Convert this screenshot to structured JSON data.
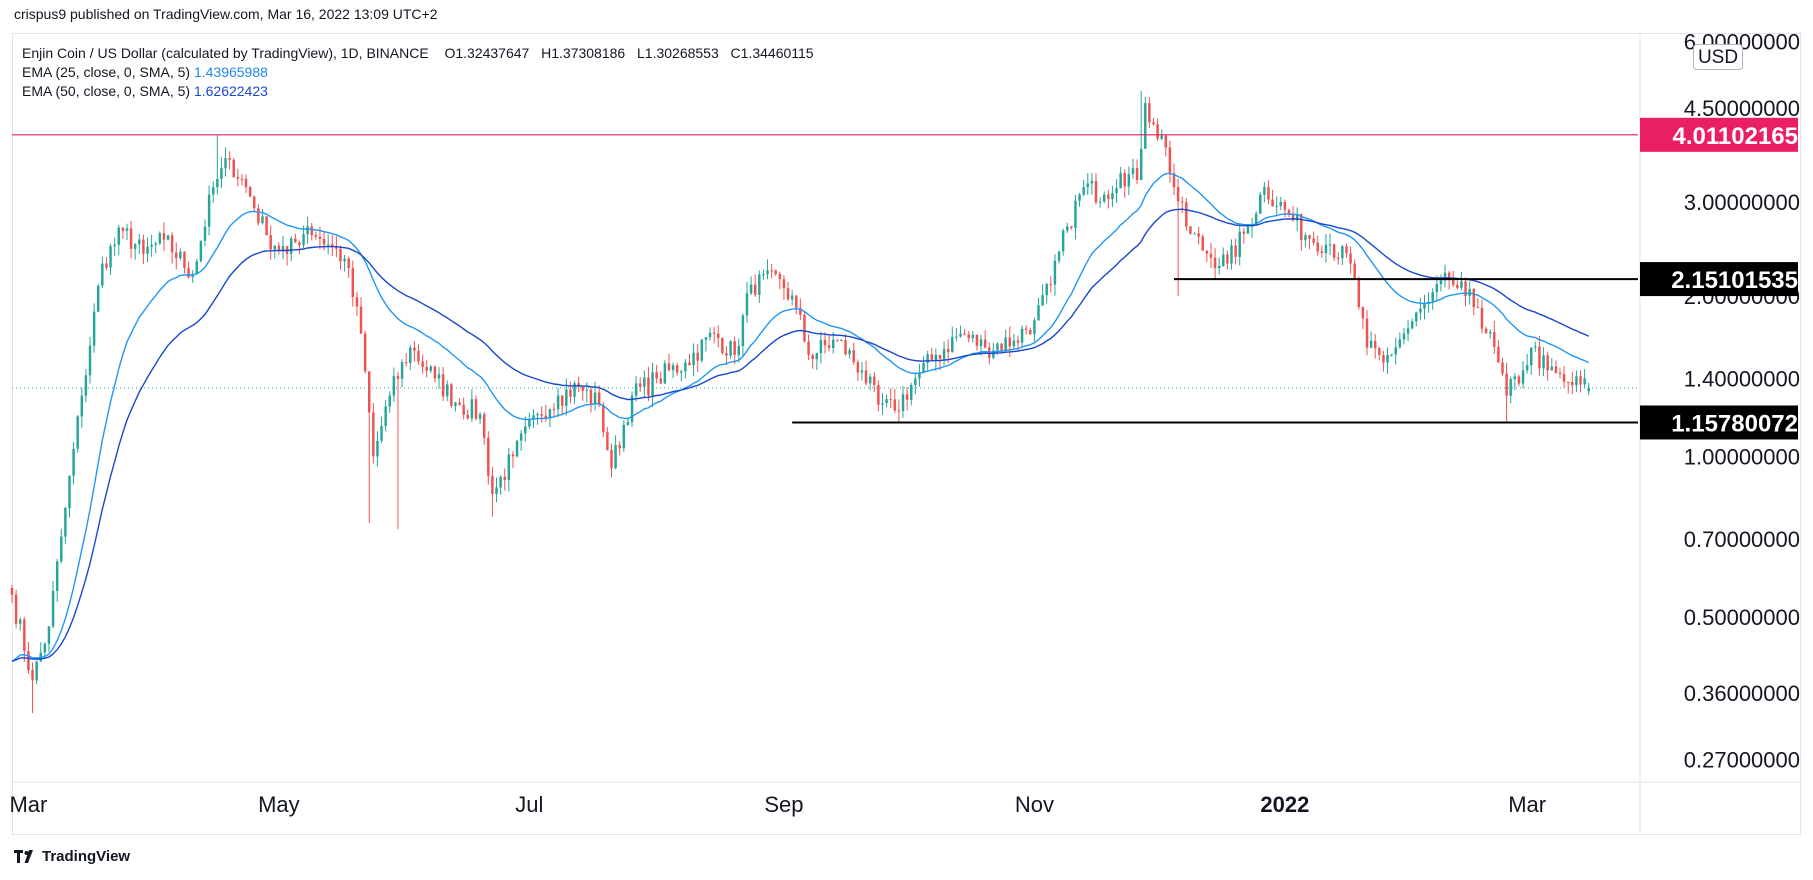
{
  "header": {
    "publisher_line": "crispus9 published on TradingView.com, Mar 16, 2022 13:09 UTC+2"
  },
  "legend": {
    "symbol": "Enjin Coin / US Dollar (calculated by TradingView), 1D, BINANCE",
    "ohlc": {
      "o_label": "O",
      "o": "1.32437647",
      "h_label": "H",
      "h": "1.37308186",
      "l_label": "L",
      "l": "1.30268553",
      "c_label": "C",
      "c": "1.34460115"
    },
    "ema25_label": "EMA (25, close, 0, SMA, 5)",
    "ema25_value": "1.43965988",
    "ema50_label": "EMA (50, close, 0, SMA, 5)",
    "ema50_value": "1.62622423"
  },
  "currency": "USD",
  "footer": {
    "brand": "TradingView"
  },
  "colors": {
    "up": "#26a69a",
    "down": "#ef5350",
    "ema25": "#2196f3",
    "ema50": "#1848cc",
    "resistance": "#e91e63",
    "support": "#000000",
    "current_price_line": "#26a69a"
  },
  "chart_data": {
    "type": "candlestick",
    "title": "Enjin Coin / US Dollar (calculated by TradingView), 1D, BINANCE",
    "y_scale": "log",
    "ylim": [
      0.245,
      6.2
    ],
    "y_ticks": [
      "6.00000000",
      "4.50000000",
      "3.00000000",
      "2.00000000",
      "1.40000000",
      "1.00000000",
      "0.70000000",
      "0.50000000",
      "0.36000000",
      "0.27000000"
    ],
    "y_tick_values": [
      6.0,
      4.5,
      3.0,
      2.0,
      1.4,
      1.0,
      0.7,
      0.5,
      0.36,
      0.27
    ],
    "x_range": [
      "2021-02-25",
      "2022-03-28"
    ],
    "x_ticks": [
      {
        "label": "Mar",
        "date": "2021-03-01",
        "bold": false
      },
      {
        "label": "May",
        "date": "2021-05-01",
        "bold": false
      },
      {
        "label": "Jul",
        "date": "2021-07-01",
        "bold": false
      },
      {
        "label": "Sep",
        "date": "2021-09-01",
        "bold": false
      },
      {
        "label": "Nov",
        "date": "2021-11-01",
        "bold": false
      },
      {
        "label": "2022",
        "date": "2022-01-01",
        "bold": true
      },
      {
        "label": "Mar",
        "date": "2022-03-01",
        "bold": false
      }
    ],
    "price_keypoints": [
      {
        "date": "2021-02-25",
        "close": 0.55
      },
      {
        "date": "2021-03-02",
        "close": 0.38
      },
      {
        "date": "2021-03-06",
        "close": 0.48
      },
      {
        "date": "2021-03-10",
        "close": 0.8
      },
      {
        "date": "2021-03-14",
        "close": 1.3
      },
      {
        "date": "2021-03-19",
        "close": 2.3
      },
      {
        "date": "2021-03-24",
        "close": 2.65
      },
      {
        "date": "2021-03-29",
        "close": 2.4
      },
      {
        "date": "2021-04-03",
        "close": 2.55
      },
      {
        "date": "2021-04-10",
        "close": 2.2
      },
      {
        "date": "2021-04-15",
        "close": 3.2
      },
      {
        "date": "2021-04-19",
        "close": 3.6
      },
      {
        "date": "2021-04-23",
        "close": 3.2
      },
      {
        "date": "2021-04-28",
        "close": 2.6
      },
      {
        "date": "2021-05-03",
        "close": 2.4
      },
      {
        "date": "2021-05-08",
        "close": 2.7
      },
      {
        "date": "2021-05-13",
        "close": 2.5
      },
      {
        "date": "2021-05-17",
        "close": 2.35
      },
      {
        "date": "2021-05-21",
        "close": 1.7
      },
      {
        "date": "2021-05-24",
        "close": 1.0
      },
      {
        "date": "2021-05-28",
        "close": 1.3
      },
      {
        "date": "2021-06-02",
        "close": 1.6
      },
      {
        "date": "2021-06-08",
        "close": 1.4
      },
      {
        "date": "2021-06-14",
        "close": 1.25
      },
      {
        "date": "2021-06-19",
        "close": 1.2
      },
      {
        "date": "2021-06-22",
        "close": 0.85
      },
      {
        "date": "2021-06-27",
        "close": 1.0
      },
      {
        "date": "2021-07-03",
        "close": 1.2
      },
      {
        "date": "2021-07-08",
        "close": 1.3
      },
      {
        "date": "2021-07-13",
        "close": 1.35
      },
      {
        "date": "2021-07-18",
        "close": 1.25
      },
      {
        "date": "2021-07-21",
        "close": 0.95
      },
      {
        "date": "2021-07-26",
        "close": 1.3
      },
      {
        "date": "2021-08-01",
        "close": 1.4
      },
      {
        "date": "2021-08-08",
        "close": 1.5
      },
      {
        "date": "2021-08-15",
        "close": 1.7
      },
      {
        "date": "2021-08-20",
        "close": 1.55
      },
      {
        "date": "2021-08-24",
        "close": 2.1
      },
      {
        "date": "2021-08-31",
        "close": 2.15
      },
      {
        "date": "2021-09-04",
        "close": 1.9
      },
      {
        "date": "2021-09-07",
        "close": 1.55
      },
      {
        "date": "2021-09-14",
        "close": 1.65
      },
      {
        "date": "2021-09-20",
        "close": 1.45
      },
      {
        "date": "2021-09-24",
        "close": 1.25
      },
      {
        "date": "2021-09-28",
        "close": 1.22
      },
      {
        "date": "2021-10-03",
        "close": 1.4
      },
      {
        "date": "2021-10-08",
        "close": 1.55
      },
      {
        "date": "2021-10-14",
        "close": 1.7
      },
      {
        "date": "2021-10-20",
        "close": 1.6
      },
      {
        "date": "2021-10-27",
        "close": 1.65
      },
      {
        "date": "2021-11-01",
        "close": 1.8
      },
      {
        "date": "2021-11-05",
        "close": 2.1
      },
      {
        "date": "2021-11-09",
        "close": 2.7
      },
      {
        "date": "2021-11-13",
        "close": 3.2
      },
      {
        "date": "2021-11-18",
        "close": 3.1
      },
      {
        "date": "2021-11-22",
        "close": 3.4
      },
      {
        "date": "2021-11-26",
        "close": 3.3
      },
      {
        "date": "2021-11-28",
        "close": 4.6
      },
      {
        "date": "2021-11-30",
        "close": 4.2
      },
      {
        "date": "2021-12-03",
        "close": 3.8
      },
      {
        "date": "2021-12-05",
        "close": 3.2
      },
      {
        "date": "2021-12-08",
        "close": 2.7
      },
      {
        "date": "2021-12-13",
        "close": 2.4
      },
      {
        "date": "2021-12-18",
        "close": 2.3
      },
      {
        "date": "2021-12-23",
        "close": 2.7
      },
      {
        "date": "2021-12-27",
        "close": 3.2
      },
      {
        "date": "2022-01-01",
        "close": 2.9
      },
      {
        "date": "2022-01-06",
        "close": 2.6
      },
      {
        "date": "2022-01-12",
        "close": 2.5
      },
      {
        "date": "2022-01-17",
        "close": 2.3
      },
      {
        "date": "2022-01-21",
        "close": 1.6
      },
      {
        "date": "2022-01-25",
        "close": 1.5
      },
      {
        "date": "2022-01-30",
        "close": 1.7
      },
      {
        "date": "2022-02-05",
        "close": 1.95
      },
      {
        "date": "2022-02-10",
        "close": 2.15
      },
      {
        "date": "2022-02-14",
        "close": 2.0
      },
      {
        "date": "2022-02-17",
        "close": 1.9
      },
      {
        "date": "2022-02-22",
        "close": 1.5
      },
      {
        "date": "2022-02-24",
        "close": 1.3
      },
      {
        "date": "2022-02-28",
        "close": 1.45
      },
      {
        "date": "2022-03-02",
        "close": 1.6
      },
      {
        "date": "2022-03-06",
        "close": 1.45
      },
      {
        "date": "2022-03-10",
        "close": 1.38
      },
      {
        "date": "2022-03-16",
        "close": 1.34460115
      }
    ],
    "extreme_wicks": [
      {
        "date": "2021-03-02",
        "low": 0.33
      },
      {
        "date": "2021-04-16",
        "high": 4.0
      },
      {
        "date": "2021-05-23",
        "low": 0.75
      },
      {
        "date": "2021-05-30",
        "low": 0.73
      },
      {
        "date": "2021-06-22",
        "low": 0.77
      },
      {
        "date": "2021-11-27",
        "high": 4.85
      },
      {
        "date": "2021-12-06",
        "low": 2.0
      },
      {
        "date": "2022-02-24",
        "low": 1.16
      }
    ],
    "series": [
      {
        "name": "EMA (25, close, 0, SMA, 5)",
        "last": 1.43965988
      },
      {
        "name": "EMA (50, close, 0, SMA, 5)",
        "last": 1.62622423
      }
    ],
    "horizontal_levels": [
      {
        "label": "4.01102165",
        "value": 4.01102165,
        "from": "2021-02-25",
        "style": "resistance"
      },
      {
        "label": "2.15101535",
        "value": 2.15101535,
        "from": "2021-12-05",
        "style": "support"
      },
      {
        "label": "1.15780072",
        "value": 1.15780072,
        "from": "2021-09-03",
        "style": "support"
      }
    ],
    "last_price": 1.34460115
  }
}
